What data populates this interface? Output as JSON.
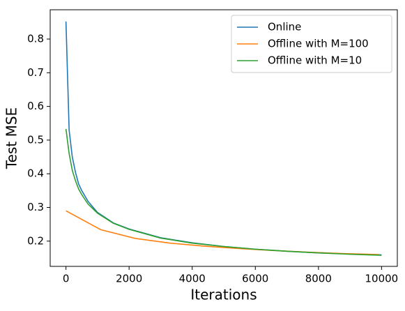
{
  "chart_data": {
    "type": "line",
    "xlabel": "Iterations",
    "ylabel": "Test MSE",
    "xlim": [
      -500,
      10500
    ],
    "ylim": [
      0.125,
      0.887
    ],
    "xticks": [
      0,
      2000,
      4000,
      6000,
      8000,
      10000
    ],
    "yticks": [
      0.2,
      0.3,
      0.4,
      0.5,
      0.6,
      0.7,
      0.8
    ],
    "legend": "upper right",
    "series": [
      {
        "name": "Online",
        "color": "#1f77b4",
        "x": [
          0,
          100,
          200,
          300,
          400,
          500,
          700,
          1000,
          1500,
          2000,
          3000,
          4000,
          5000,
          6000,
          7000,
          8000,
          9000,
          10000
        ],
        "values": [
          0.852,
          0.53,
          0.45,
          0.405,
          0.37,
          0.35,
          0.318,
          0.285,
          0.254,
          0.236,
          0.21,
          0.195,
          0.184,
          0.176,
          0.17,
          0.165,
          0.162,
          0.159
        ]
      },
      {
        "name": "Offline with M=100",
        "color": "#ff7f0e",
        "x": [
          0,
          1100,
          2200,
          3300,
          4400,
          5500,
          6600,
          7700,
          8800,
          9900
        ],
        "values": [
          0.29,
          0.234,
          0.208,
          0.194,
          0.185,
          0.178,
          0.172,
          0.167,
          0.163,
          0.16
        ]
      },
      {
        "name": "Offline with M=10",
        "color": "#2ca02c",
        "x": [
          0,
          100,
          200,
          300,
          400,
          500,
          700,
          1000,
          1500,
          2000,
          3000,
          4000,
          5000,
          6000,
          7000,
          8000,
          9000,
          10000
        ],
        "values": [
          0.533,
          0.46,
          0.41,
          0.38,
          0.355,
          0.338,
          0.31,
          0.283,
          0.253,
          0.235,
          0.209,
          0.194,
          0.184,
          0.176,
          0.17,
          0.165,
          0.161,
          0.158
        ]
      }
    ]
  }
}
